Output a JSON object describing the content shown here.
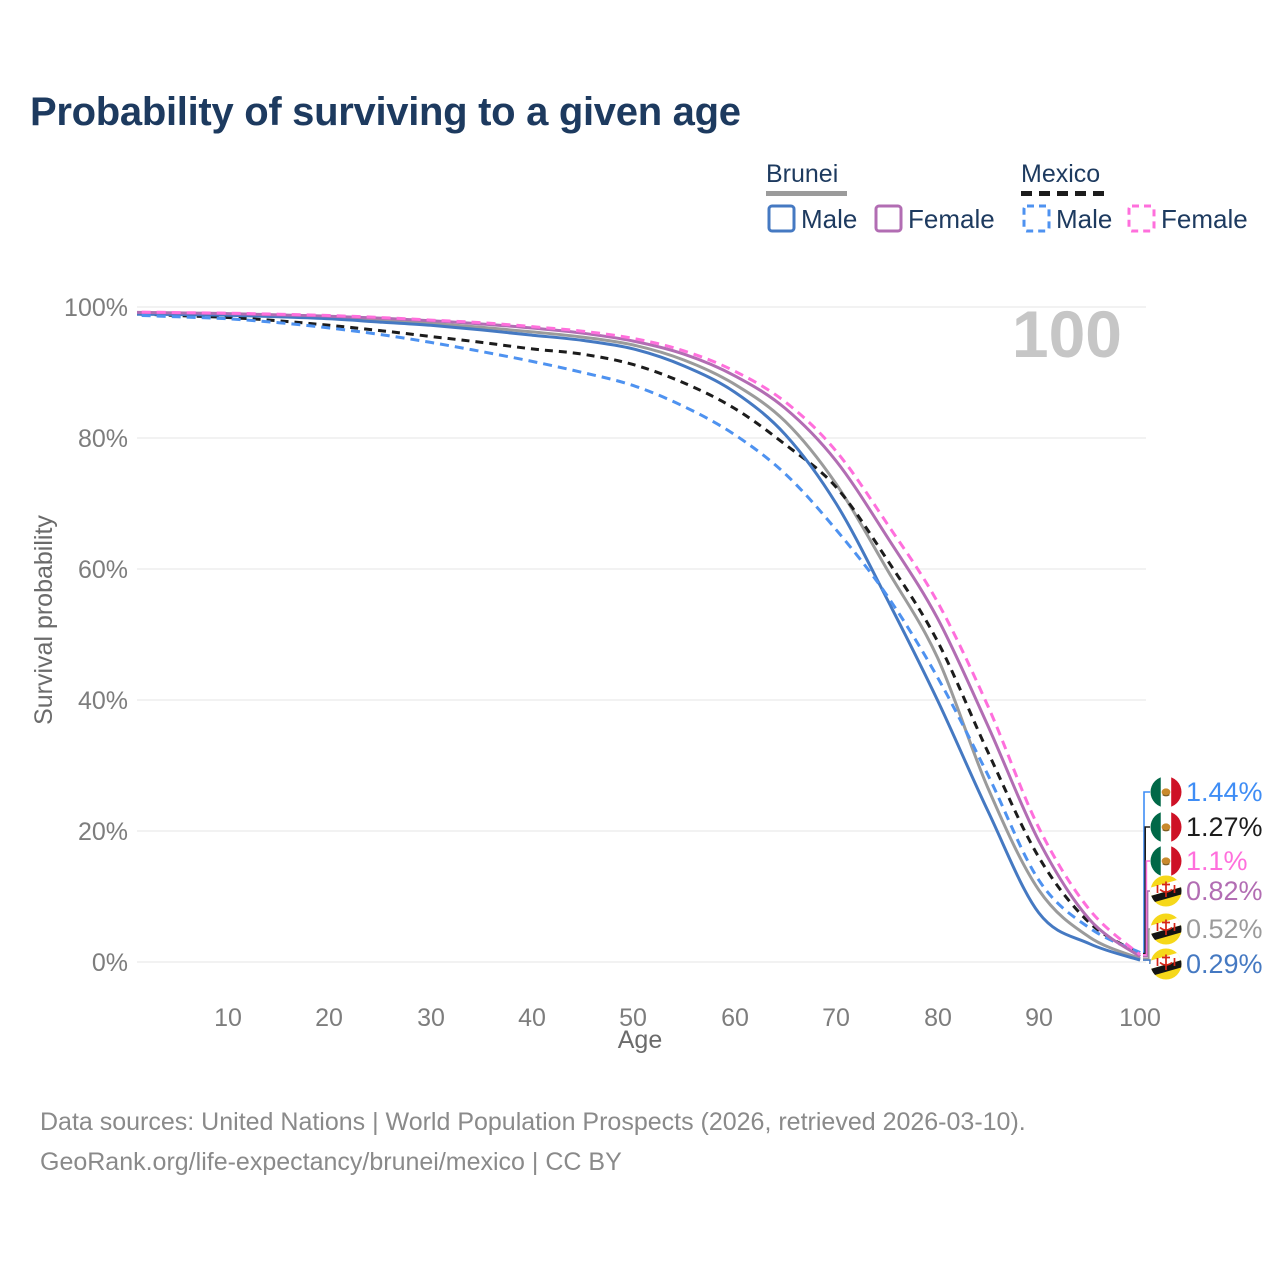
{
  "title": "Probability of surviving to a given age",
  "watermark": "100",
  "legend": {
    "groups": [
      {
        "name": "Brunei",
        "line_style": "solid",
        "underline_color": "#9b9b9b",
        "items": [
          {
            "label": "Male",
            "color": "#4579C2"
          },
          {
            "label": "Female",
            "color": "#B26DB3"
          }
        ]
      },
      {
        "name": "Mexico",
        "line_style": "dashed",
        "underline_color": "#1c1c1c",
        "items": [
          {
            "label": "Male",
            "color": "#4E92F0"
          },
          {
            "label": "Female",
            "color": "#FF6FDC"
          }
        ]
      }
    ]
  },
  "chart_data": {
    "type": "line",
    "title": "Probability of surviving to a given age",
    "xlabel": "Age",
    "ylabel": "Survival probability",
    "xlim": [
      0,
      100
    ],
    "ylim": [
      0,
      100
    ],
    "grid": "horizontal",
    "x_ticks": [
      10,
      20,
      30,
      40,
      50,
      60,
      70,
      80,
      90,
      100
    ],
    "y_ticks": [
      "100%",
      "80%",
      "60%",
      "40%",
      "20%",
      "0%"
    ],
    "ages": [
      0,
      5,
      10,
      15,
      20,
      25,
      30,
      35,
      40,
      45,
      50,
      55,
      60,
      65,
      70,
      75,
      80,
      85,
      90,
      95,
      100
    ],
    "series": [
      {
        "name": "Brunei Male",
        "country": "Brunei",
        "sex": "male",
        "color": "#4579C2",
        "dash": "",
        "ages": [
          0,
          5,
          10,
          15,
          20,
          25,
          30,
          35,
          40,
          45,
          50,
          55,
          60,
          65,
          70,
          75,
          80,
          85,
          90,
          95,
          100
        ],
        "values": [
          98.9,
          98.85,
          98.75,
          98.5,
          98.2,
          97.7,
          97.2,
          96.5,
          95.7,
          94.9,
          93.6,
          91.0,
          87.0,
          80.5,
          70.0,
          55.5,
          40.0,
          23.0,
          7.5,
          2.8,
          0.29
        ]
      },
      {
        "name": "Brunei Female",
        "country": "Brunei",
        "sex": "female",
        "color": "#B26DB3",
        "dash": "",
        "ages": [
          0,
          5,
          10,
          15,
          20,
          25,
          30,
          35,
          40,
          45,
          50,
          55,
          60,
          65,
          70,
          75,
          80,
          85,
          90,
          95,
          100
        ],
        "values": [
          99.2,
          99.1,
          99.0,
          98.8,
          98.6,
          98.3,
          97.9,
          97.4,
          96.8,
          96.0,
          94.8,
          92.8,
          89.5,
          84.5,
          76.5,
          65.0,
          52.5,
          36.0,
          18.5,
          6.5,
          0.82
        ]
      },
      {
        "name": "Brunei",
        "country": "Brunei",
        "sex": "both",
        "color": "#9B9B9B",
        "dash": "",
        "ages": [
          0,
          5,
          10,
          15,
          20,
          25,
          30,
          35,
          40,
          45,
          50,
          55,
          60,
          65,
          70,
          75,
          80,
          85,
          90,
          95,
          100
        ],
        "values": [
          99.0,
          98.95,
          98.85,
          98.65,
          98.4,
          98.0,
          97.5,
          96.9,
          96.2,
          95.4,
          94.2,
          91.9,
          88.2,
          82.5,
          73.0,
          60.0,
          46.5,
          26.5,
          11.0,
          3.8,
          0.52
        ]
      },
      {
        "name": "Mexico Male",
        "country": "Mexico",
        "sex": "male",
        "color": "#4E92F0",
        "dash": "9 6",
        "ages": [
          0,
          5,
          10,
          15,
          20,
          25,
          30,
          35,
          40,
          45,
          50,
          55,
          60,
          65,
          70,
          75,
          80,
          85,
          90,
          95,
          100
        ],
        "values": [
          98.8,
          98.5,
          98.2,
          97.6,
          96.8,
          95.8,
          94.6,
          93.2,
          91.7,
          90.0,
          88.0,
          84.8,
          80.5,
          74.5,
          66.0,
          56.0,
          43.5,
          28.5,
          12.5,
          5.2,
          1.44
        ]
      },
      {
        "name": "Mexico Female",
        "country": "Mexico",
        "sex": "female",
        "color": "#FF6FDC",
        "dash": "9 6",
        "ages": [
          0,
          5,
          10,
          15,
          20,
          25,
          30,
          35,
          40,
          45,
          50,
          55,
          60,
          65,
          70,
          75,
          80,
          85,
          90,
          95,
          100
        ],
        "values": [
          99.25,
          99.15,
          99.05,
          98.9,
          98.7,
          98.4,
          98.0,
          97.6,
          97.0,
          96.3,
          95.2,
          93.3,
          90.2,
          85.5,
          78.0,
          67.0,
          55.0,
          39.0,
          20.5,
          8.0,
          1.1
        ]
      },
      {
        "name": "Mexico",
        "country": "Mexico",
        "sex": "both",
        "color": "#1C1C1C",
        "dash": "8 6",
        "ages": [
          0,
          5,
          10,
          15,
          20,
          25,
          30,
          35,
          40,
          45,
          50,
          55,
          60,
          65,
          70,
          75,
          80,
          85,
          90,
          95,
          100
        ],
        "values": [
          99.0,
          98.7,
          98.4,
          97.9,
          97.2,
          96.4,
          95.5,
          94.6,
          93.6,
          92.8,
          91.2,
          88.4,
          84.5,
          79.0,
          72.5,
          61.5,
          49.0,
          32.0,
          16.0,
          6.0,
          1.27
        ]
      }
    ],
    "end_labels": [
      {
        "value": "1.44%",
        "pct": 1.44,
        "color": "#3F8DF5",
        "flag": "mexico",
        "series": "Mexico Male"
      },
      {
        "value": "1.27%",
        "pct": 1.27,
        "color": "#1C1C1C",
        "flag": "mexico",
        "series": "Mexico"
      },
      {
        "value": "1.1%",
        "pct": 1.1,
        "color": "#FF6FDC",
        "flag": "mexico",
        "series": "Mexico Female"
      },
      {
        "value": "0.82%",
        "pct": 0.82,
        "color": "#B26DB3",
        "flag": "brunei",
        "series": "Brunei Female"
      },
      {
        "value": "0.52%",
        "pct": 0.52,
        "color": "#9B9B9B",
        "flag": "brunei",
        "series": "Brunei"
      },
      {
        "value": "0.29%",
        "pct": 0.29,
        "color": "#4579C2",
        "flag": "brunei",
        "series": "Brunei Male"
      }
    ]
  },
  "footer": {
    "line1": "Data sources: United Nations | World Population Prospects (2026, retrieved 2026-03-10).",
    "line2": "GeoRank.org/life-expectancy/brunei/mexico | CC BY"
  }
}
